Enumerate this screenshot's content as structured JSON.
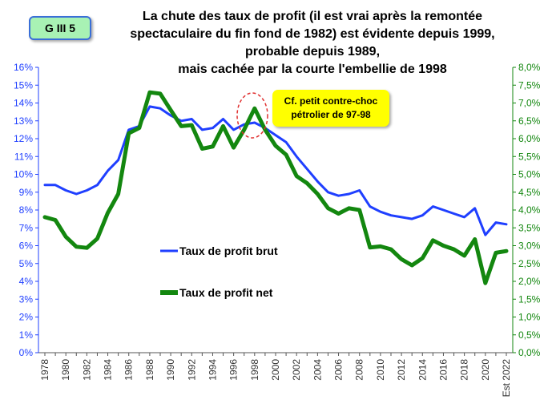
{
  "badge": "G III 5",
  "title_lines": [
    "La chute des taux de profit (il est vrai après la remontée",
    "spectaculaire du fin fond de 1982) est évidente depuis 1999,",
    "probable depuis 1989,",
    "mais cachée par la courte l'embellie de 1998"
  ],
  "callout": {
    "line1": "Cf. petit contre-choc",
    "line2": "pétrolier de 97-98"
  },
  "chart_data": {
    "type": "line",
    "title": "La chute des taux de profit (il est vrai après la remontée spectaculaire du fin fond de 1982) est évidente depuis 1999, probable depuis 1989, mais cachée par la courte l'embellie de 1998",
    "x": [
      1978,
      1979,
      1980,
      1981,
      1982,
      1983,
      1984,
      1985,
      1986,
      1987,
      1988,
      1989,
      1990,
      1991,
      1992,
      1993,
      1994,
      1995,
      1996,
      1997,
      1998,
      1999,
      2000,
      2001,
      2002,
      2003,
      2004,
      2005,
      2006,
      2007,
      2008,
      2009,
      2010,
      2011,
      2012,
      2013,
      2014,
      2015,
      2016,
      2017,
      2018,
      2019,
      2020,
      2021,
      2022
    ],
    "x_tick_labels": [
      "1978",
      "1980",
      "1982",
      "1984",
      "1986",
      "1988",
      "1990",
      "1992",
      "1994",
      "1996",
      "1998",
      "2000",
      "2002",
      "2004",
      "2006",
      "2008",
      "2010",
      "2012",
      "2014",
      "2016",
      "2018",
      "2020",
      "Est 2022"
    ],
    "y_left": {
      "min": 0,
      "max": 16,
      "step": 1,
      "tick_labels": [
        "0%",
        "1%",
        "2%",
        "3%",
        "4%",
        "5%",
        "6%",
        "7%",
        "8%",
        "9%",
        "10%",
        "11%",
        "12%",
        "13%",
        "14%",
        "15%",
        "16%"
      ]
    },
    "y_right": {
      "min": 0,
      "max": 8,
      "step": 0.5,
      "tick_labels": [
        "0,0%",
        "0,5%",
        "1,0%",
        "1,5%",
        "2,0%",
        "2,5%",
        "3,0%",
        "3,5%",
        "4,0%",
        "4,5%",
        "5,0%",
        "5,5%",
        "6,0%",
        "6,5%",
        "7,0%",
        "7,5%",
        "8,0%"
      ]
    },
    "series": [
      {
        "name": "Taux de profit brut",
        "axis": "left",
        "color": "#1f3fff",
        "values": [
          9.4,
          9.4,
          9.1,
          8.9,
          9.1,
          9.4,
          10.2,
          10.8,
          12.5,
          12.7,
          13.8,
          13.7,
          13.3,
          13.0,
          13.1,
          12.5,
          12.6,
          13.1,
          12.5,
          12.8,
          12.9,
          12.6,
          12.2,
          11.8,
          11.0,
          10.3,
          9.6,
          9.0,
          8.8,
          8.9,
          9.1,
          8.2,
          7.9,
          7.7,
          7.6,
          7.5,
          7.7,
          8.2,
          8.0,
          7.8,
          7.6,
          8.1,
          6.6,
          7.3,
          7.2
        ]
      },
      {
        "name": "Taux de profit net",
        "axis": "right",
        "color": "#13870f",
        "values": [
          3.8,
          3.72,
          3.25,
          2.97,
          2.94,
          3.2,
          3.92,
          4.45,
          6.15,
          6.3,
          7.3,
          7.26,
          6.8,
          6.35,
          6.38,
          5.72,
          5.78,
          6.35,
          5.75,
          6.25,
          6.85,
          6.25,
          5.8,
          5.55,
          4.95,
          4.75,
          4.45,
          4.05,
          3.9,
          4.05,
          4.0,
          2.95,
          2.98,
          2.9,
          2.62,
          2.45,
          2.65,
          3.15,
          3.0,
          2.9,
          2.72,
          3.18,
          1.95,
          2.8,
          2.85
        ]
      }
    ],
    "legend": [
      "Taux de profit brut",
      "Taux de profit net"
    ],
    "grid": false,
    "annotation": "Cf. petit contre-choc pétrolier de 97-98"
  }
}
